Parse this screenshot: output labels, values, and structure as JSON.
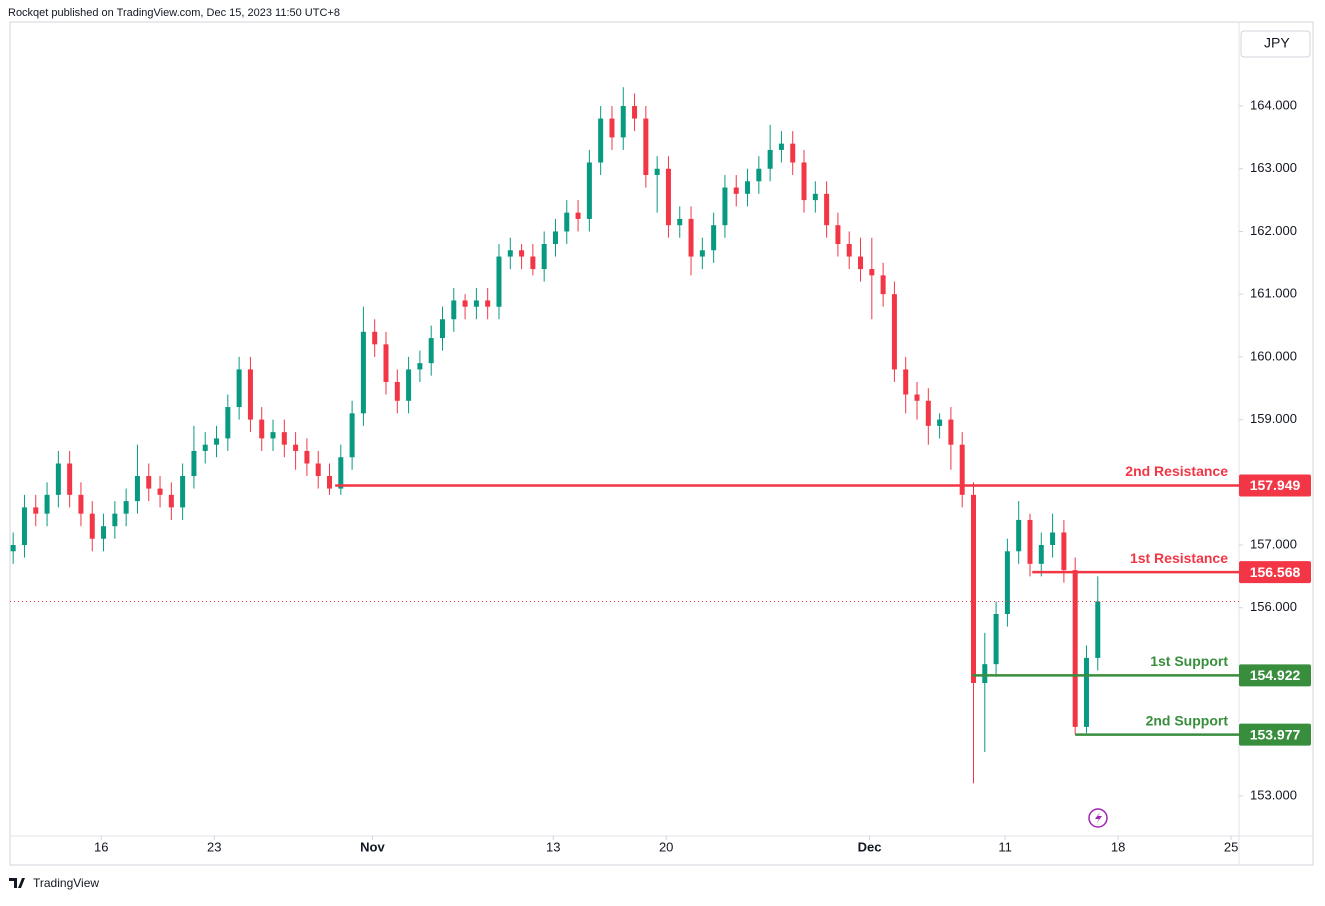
{
  "chart_data": {
    "type": "candlestick",
    "source_note": "Rockqet published on TradingView.com, Dec 15, 2023 11:50 UTC+8",
    "currency_label": "JPY",
    "brand": "TradingView",
    "up_color": "#089981",
    "down_color": "#f23645",
    "grid": false,
    "xlim": [
      -4.04,
      50.35
    ],
    "xticks": [
      {
        "value": 0,
        "label": "16"
      },
      {
        "value": 5,
        "label": "23"
      },
      {
        "value": 12,
        "label": "Nov"
      },
      {
        "value": 20,
        "label": "13"
      },
      {
        "value": 25,
        "label": "20"
      },
      {
        "value": 34,
        "label": "Dec"
      },
      {
        "value": 40,
        "label": "11"
      },
      {
        "value": 45,
        "label": "18"
      },
      {
        "value": 50,
        "label": "25"
      }
    ],
    "ylim": [
      152.36,
      165.34
    ],
    "yticks": [
      {
        "value": 153,
        "label": "153.000"
      },
      {
        "value": 156,
        "label": "156.000"
      },
      {
        "value": 157,
        "label": "157.000"
      },
      {
        "value": 159,
        "label": "159.000"
      },
      {
        "value": 160,
        "label": "160.000"
      },
      {
        "value": 161,
        "label": "161.000"
      },
      {
        "value": 162,
        "label": "162.000"
      },
      {
        "value": 163,
        "label": "163.000"
      },
      {
        "value": 164,
        "label": "164.000"
      }
    ],
    "x": [
      -3.9,
      -3.4,
      -2.9,
      -2.4,
      -1.9,
      -1.4,
      -0.9,
      -0.4,
      0.1,
      0.6,
      1.1,
      1.6,
      2.1,
      2.6,
      3.1,
      3.6,
      4.1,
      4.6,
      5.1,
      5.6,
      6.1,
      6.6,
      7.1,
      7.6,
      8.1,
      8.6,
      9.1,
      9.6,
      10.1,
      10.6,
      11.1,
      11.6,
      12.1,
      12.6,
      13.1,
      13.6,
      14.1,
      14.6,
      15.1,
      15.6,
      16.1,
      16.6,
      17.1,
      17.6,
      18.1,
      18.6,
      19.1,
      19.6,
      20.1,
      20.6,
      21.1,
      21.6,
      22.1,
      22.6,
      23.1,
      23.6,
      24.1,
      24.6,
      25.1,
      25.6,
      26.1,
      26.6,
      27.1,
      27.6,
      28.1,
      28.6,
      29.1,
      29.6,
      30.1,
      30.6,
      31.1,
      31.6,
      32.1,
      32.6,
      33.1,
      33.6,
      34.1,
      34.6,
      35.1,
      35.6,
      36.1,
      36.6,
      37.1,
      37.6,
      38.1,
      38.6,
      39.1,
      39.6,
      40.1,
      40.6,
      41.1,
      41.6,
      42.1,
      42.6,
      43.1,
      43.6,
      44.1
    ],
    "open": [
      156.9,
      157.0,
      157.6,
      157.5,
      157.8,
      158.3,
      157.8,
      157.5,
      157.1,
      157.3,
      157.5,
      157.7,
      158.1,
      157.9,
      157.8,
      157.6,
      158.1,
      158.5,
      158.6,
      158.7,
      159.2,
      159.8,
      159.0,
      158.7,
      158.8,
      158.6,
      158.5,
      158.3,
      158.1,
      157.9,
      158.4,
      159.1,
      160.4,
      160.2,
      159.6,
      159.3,
      159.8,
      159.9,
      160.3,
      160.6,
      160.9,
      160.8,
      160.9,
      160.8,
      161.6,
      161.7,
      161.6,
      161.4,
      161.8,
      162.0,
      162.3,
      162.2,
      163.1,
      163.8,
      163.5,
      164.0,
      163.8,
      162.9,
      163.0,
      162.1,
      162.2,
      161.6,
      161.7,
      162.1,
      162.7,
      162.6,
      162.8,
      163.0,
      163.3,
      163.4,
      163.1,
      162.5,
      162.6,
      162.1,
      161.8,
      161.6,
      161.4,
      161.3,
      161.0,
      159.8,
      159.4,
      159.3,
      158.9,
      159.0,
      158.6,
      157.8,
      154.8,
      155.1,
      155.9,
      156.9,
      157.4,
      156.7,
      157.0,
      157.2,
      156.6,
      154.1,
      155.2
    ],
    "high": [
      157.2,
      157.8,
      157.8,
      158.0,
      158.5,
      158.5,
      158.0,
      157.7,
      157.5,
      157.7,
      157.9,
      158.6,
      158.3,
      158.1,
      158.0,
      158.3,
      158.9,
      158.8,
      158.9,
      159.4,
      160.0,
      160.0,
      159.2,
      159.0,
      159.0,
      158.8,
      158.7,
      158.5,
      158.3,
      158.6,
      159.3,
      160.8,
      160.6,
      160.4,
      159.8,
      160.0,
      160.1,
      160.5,
      160.8,
      161.1,
      161.0,
      161.1,
      161.1,
      161.8,
      161.9,
      161.8,
      161.8,
      162.0,
      162.2,
      162.5,
      162.5,
      163.3,
      164.0,
      164.0,
      164.3,
      164.2,
      164.0,
      163.2,
      163.2,
      162.4,
      162.4,
      161.9,
      162.3,
      162.9,
      162.9,
      163.0,
      163.2,
      163.7,
      163.6,
      163.6,
      163.3,
      162.8,
      162.8,
      162.3,
      162.0,
      161.9,
      161.9,
      161.5,
      161.2,
      160.0,
      159.6,
      159.5,
      159.1,
      159.2,
      158.8,
      158.0,
      155.6,
      156.1,
      157.1,
      157.7,
      157.5,
      157.2,
      157.5,
      157.4,
      156.8,
      155.4,
      156.5
    ],
    "low": [
      156.7,
      156.8,
      157.3,
      157.3,
      157.6,
      157.6,
      157.3,
      156.9,
      156.9,
      157.1,
      157.3,
      157.5,
      157.7,
      157.6,
      157.4,
      157.4,
      157.9,
      158.3,
      158.4,
      158.5,
      159.0,
      158.8,
      158.5,
      158.5,
      158.4,
      158.2,
      158.1,
      157.9,
      157.8,
      157.8,
      158.2,
      158.9,
      160.0,
      159.4,
      159.1,
      159.1,
      159.6,
      159.7,
      160.1,
      160.4,
      160.6,
      160.6,
      160.6,
      160.6,
      161.4,
      161.4,
      161.3,
      161.2,
      161.6,
      161.8,
      162.0,
      162.0,
      162.9,
      163.3,
      163.3,
      163.6,
      162.7,
      162.3,
      161.9,
      161.9,
      161.3,
      161.4,
      161.5,
      161.9,
      162.4,
      162.4,
      162.6,
      162.8,
      163.1,
      162.9,
      162.3,
      162.3,
      161.9,
      161.6,
      161.4,
      161.2,
      160.6,
      160.8,
      159.6,
      159.1,
      159.0,
      158.6,
      158.7,
      158.2,
      157.6,
      153.2,
      153.7,
      154.9,
      155.7,
      156.7,
      156.5,
      156.5,
      156.8,
      156.4,
      153.98,
      154.0,
      155.0
    ],
    "close": [
      157.0,
      157.6,
      157.5,
      157.8,
      158.3,
      157.8,
      157.5,
      157.1,
      157.3,
      157.5,
      157.7,
      158.1,
      157.9,
      157.8,
      157.6,
      158.1,
      158.5,
      158.6,
      158.7,
      159.2,
      159.8,
      159.0,
      158.7,
      158.8,
      158.6,
      158.5,
      158.3,
      158.1,
      157.9,
      158.4,
      159.1,
      160.4,
      160.2,
      159.6,
      159.3,
      159.8,
      159.9,
      160.3,
      160.6,
      160.9,
      160.8,
      160.9,
      160.8,
      161.6,
      161.7,
      161.6,
      161.4,
      161.8,
      162.0,
      162.3,
      162.2,
      163.1,
      163.8,
      163.5,
      164.0,
      163.8,
      162.9,
      163.0,
      162.1,
      162.2,
      161.6,
      161.7,
      162.1,
      162.7,
      162.6,
      162.8,
      163.0,
      163.3,
      163.4,
      163.1,
      162.5,
      162.6,
      162.1,
      161.8,
      161.6,
      161.4,
      161.3,
      161.0,
      159.8,
      159.4,
      159.3,
      158.9,
      159.0,
      158.6,
      157.8,
      154.8,
      155.1,
      155.9,
      156.9,
      157.4,
      156.7,
      157.0,
      157.2,
      156.6,
      154.1,
      155.2,
      156.1
    ],
    "levels": [
      {
        "name": "2nd Resistance",
        "value": 157.949,
        "from": 10.35,
        "color": "#f23645"
      },
      {
        "name": "1st Resistance",
        "value": 156.568,
        "from": 41.2,
        "color": "#f23645"
      },
      {
        "name": "1st Support",
        "value": 154.922,
        "from": 38.55,
        "color": "#388e3c"
      },
      {
        "name": "2nd Support",
        "value": 153.977,
        "from": 43.1,
        "color": "#388e3c"
      }
    ]
  }
}
